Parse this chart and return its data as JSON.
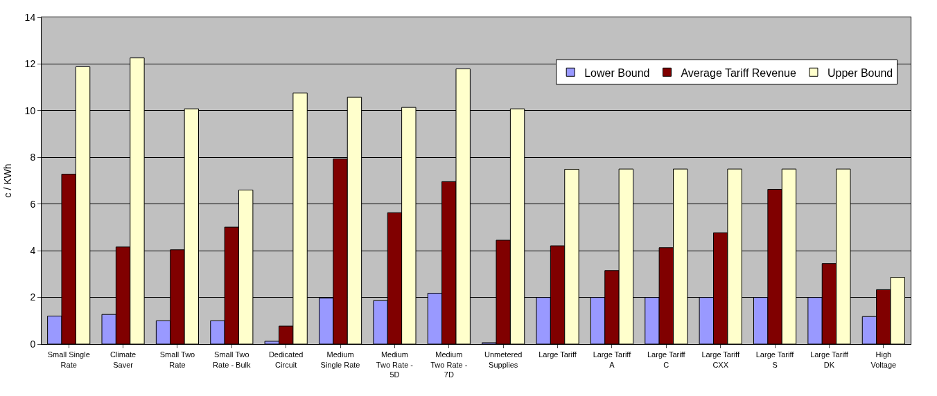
{
  "chart_data": {
    "type": "bar",
    "ylabel": "c / KWh",
    "ylim": [
      0,
      14
    ],
    "yticks": [
      0,
      2,
      4,
      6,
      8,
      10,
      12,
      14
    ],
    "grid": "y",
    "legend": "top right",
    "categories": [
      "Small Single\nRate",
      "Climate\nSaver",
      "Small Two\nRate",
      "Small Two\nRate - Bulk",
      "Dedicated\nCircuit",
      "Medium\nSingle Rate",
      "Medium\nTwo Rate -\n5D",
      "Medium\nTwo Rate -\n7D",
      "Unmetered\nSupplies",
      "Large Tariff",
      "Large Tariff\nA",
      "Large Tariff\nC",
      "Large Tariff\nCXX",
      "Large Tariff\nS",
      "Large Tariff\nDK",
      "High\nVoltage"
    ],
    "series": [
      {
        "name": "Lower Bound",
        "color": "#9999ff",
        "values": [
          1.2,
          1.27,
          1.0,
          1.0,
          0.12,
          1.97,
          1.86,
          2.18,
          0.06,
          2.0,
          2.0,
          2.0,
          2.0,
          2.0,
          2.0,
          1.18
        ]
      },
      {
        "name": "Average Tariff Revenue",
        "color": "#800000",
        "values": [
          7.28,
          4.16,
          4.04,
          5.01,
          0.77,
          7.93,
          5.63,
          6.96,
          4.45,
          4.21,
          3.15,
          4.13,
          4.77,
          6.63,
          3.45,
          2.33
        ]
      },
      {
        "name": "Upper Bound",
        "color": "#ffffcc",
        "values": [
          11.88,
          12.26,
          10.08,
          6.6,
          10.76,
          10.58,
          10.14,
          11.79,
          10.08,
          7.49,
          7.5,
          7.5,
          7.5,
          7.5,
          7.5,
          2.86
        ]
      }
    ]
  }
}
